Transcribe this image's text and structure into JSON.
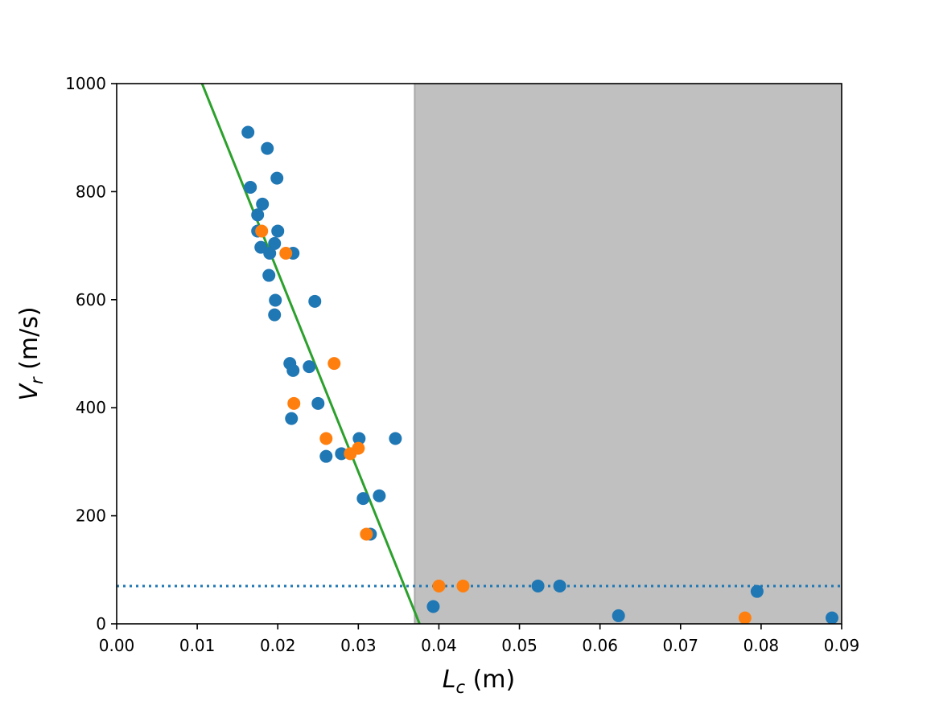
{
  "chart_data": {
    "type": "scatter",
    "xlabel_main": "L",
    "xlabel_sub": "c",
    "xlabel_unit": " (m)",
    "ylabel_main": "V",
    "ylabel_sub": "r",
    "ylabel_unit": " (m/s)",
    "xlim": [
      0.0,
      0.09
    ],
    "ylim": [
      0,
      1000
    ],
    "xticks": [
      0.0,
      0.01,
      0.02,
      0.03,
      0.04,
      0.05,
      0.06,
      0.07,
      0.08,
      0.09
    ],
    "xtick_labels": [
      "0.00",
      "0.01",
      "0.02",
      "0.03",
      "0.04",
      "0.05",
      "0.06",
      "0.07",
      "0.08",
      "0.09"
    ],
    "yticks": [
      0,
      200,
      400,
      600,
      800,
      1000
    ],
    "ytick_labels": [
      "0",
      "200",
      "400",
      "600",
      "800",
      "1000"
    ],
    "grid": false,
    "shaded_region": {
      "x_start": 0.037,
      "x_end": 0.09,
      "color": "#c0c0c0"
    },
    "horizontal_line": {
      "y": 70,
      "style": "dotted",
      "color": "#1f77b4"
    },
    "fit_line": {
      "x": [
        0.0106,
        0.0376
      ],
      "y": [
        1000,
        0
      ],
      "color": "#2ca02c"
    },
    "series": [
      {
        "color": "#1f77b4",
        "x": [
          0.0163,
          0.0187,
          0.0166,
          0.0199,
          0.0181,
          0.0175,
          0.0175,
          0.02,
          0.0196,
          0.0179,
          0.019,
          0.0219,
          0.0189,
          0.0197,
          0.0246,
          0.0196,
          0.0215,
          0.0239,
          0.0219,
          0.025,
          0.0217,
          0.0301,
          0.0346,
          0.0279,
          0.026,
          0.0306,
          0.0326,
          0.0315,
          0.0393,
          0.0523,
          0.055,
          0.0623,
          0.0795,
          0.0888
        ],
        "y": [
          910,
          880,
          808,
          825,
          777,
          757,
          727,
          727,
          704,
          697,
          686,
          686,
          645,
          599,
          597,
          572,
          482,
          476,
          469,
          408,
          380,
          343,
          343,
          315,
          310,
          232,
          237,
          166,
          32,
          70,
          70,
          15,
          60,
          11
        ]
      },
      {
        "color": "#ff7f0e",
        "x": [
          0.018,
          0.021,
          0.027,
          0.022,
          0.026,
          0.029,
          0.03,
          0.031,
          0.04,
          0.043,
          0.078
        ],
        "y": [
          727,
          686,
          482,
          408,
          343,
          315,
          325,
          166,
          70,
          70,
          11
        ]
      }
    ]
  }
}
